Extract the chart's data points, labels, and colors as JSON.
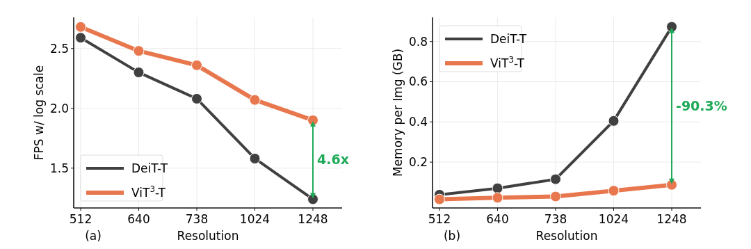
{
  "chart_data": [
    {
      "type": "line",
      "categories": [
        "512",
        "640",
        "738",
        "1024",
        "1248"
      ],
      "xlabel": "Resolution",
      "ylabel": "FPS w/ log scale",
      "ylim": [
        1.167,
        2.76
      ],
      "yticks": [
        1.5,
        {
          "value": 2,
          "label": "2.0"
        },
        2.5
      ],
      "grid": true,
      "legend": "bottom left",
      "marker": "circle",
      "line_style": "solid",
      "series": [
        {
          "name": "DeiT-T",
          "color": "#404040",
          "values": [
            2.59,
            2.3,
            2.08,
            1.58,
            1.24
          ]
        },
        {
          "name": "ViT$^{3}$-T",
          "color": "#e8774d",
          "values": [
            2.68,
            2.48,
            2.36,
            2.07,
            1.9
          ]
        }
      ],
      "annotations": [
        "4.6x",
        "(a)"
      ]
    },
    {
      "type": "line",
      "categories": [
        "512",
        "640",
        "738",
        "1024",
        "1248"
      ],
      "xlabel": "Resolution",
      "ylabel": "Memory per Img (GB)",
      "ylim": [
        -0.028,
        0.92
      ],
      "yticks": [
        0.2,
        0.4,
        0.6,
        0.8
      ],
      "grid": true,
      "legend": "top left",
      "marker": "circle",
      "line_style": "solid",
      "series": [
        {
          "name": "DeiT-T",
          "color": "#404040",
          "values": [
            0.038,
            0.07,
            0.115,
            0.405,
            0.873
          ]
        },
        {
          "name": "ViT$^{3}$-T",
          "color": "#e8774d",
          "values": [
            0.015,
            0.023,
            0.029,
            0.058,
            0.087
          ]
        }
      ],
      "annotations": [
        "-90.3%",
        "(b)"
      ]
    }
  ]
}
